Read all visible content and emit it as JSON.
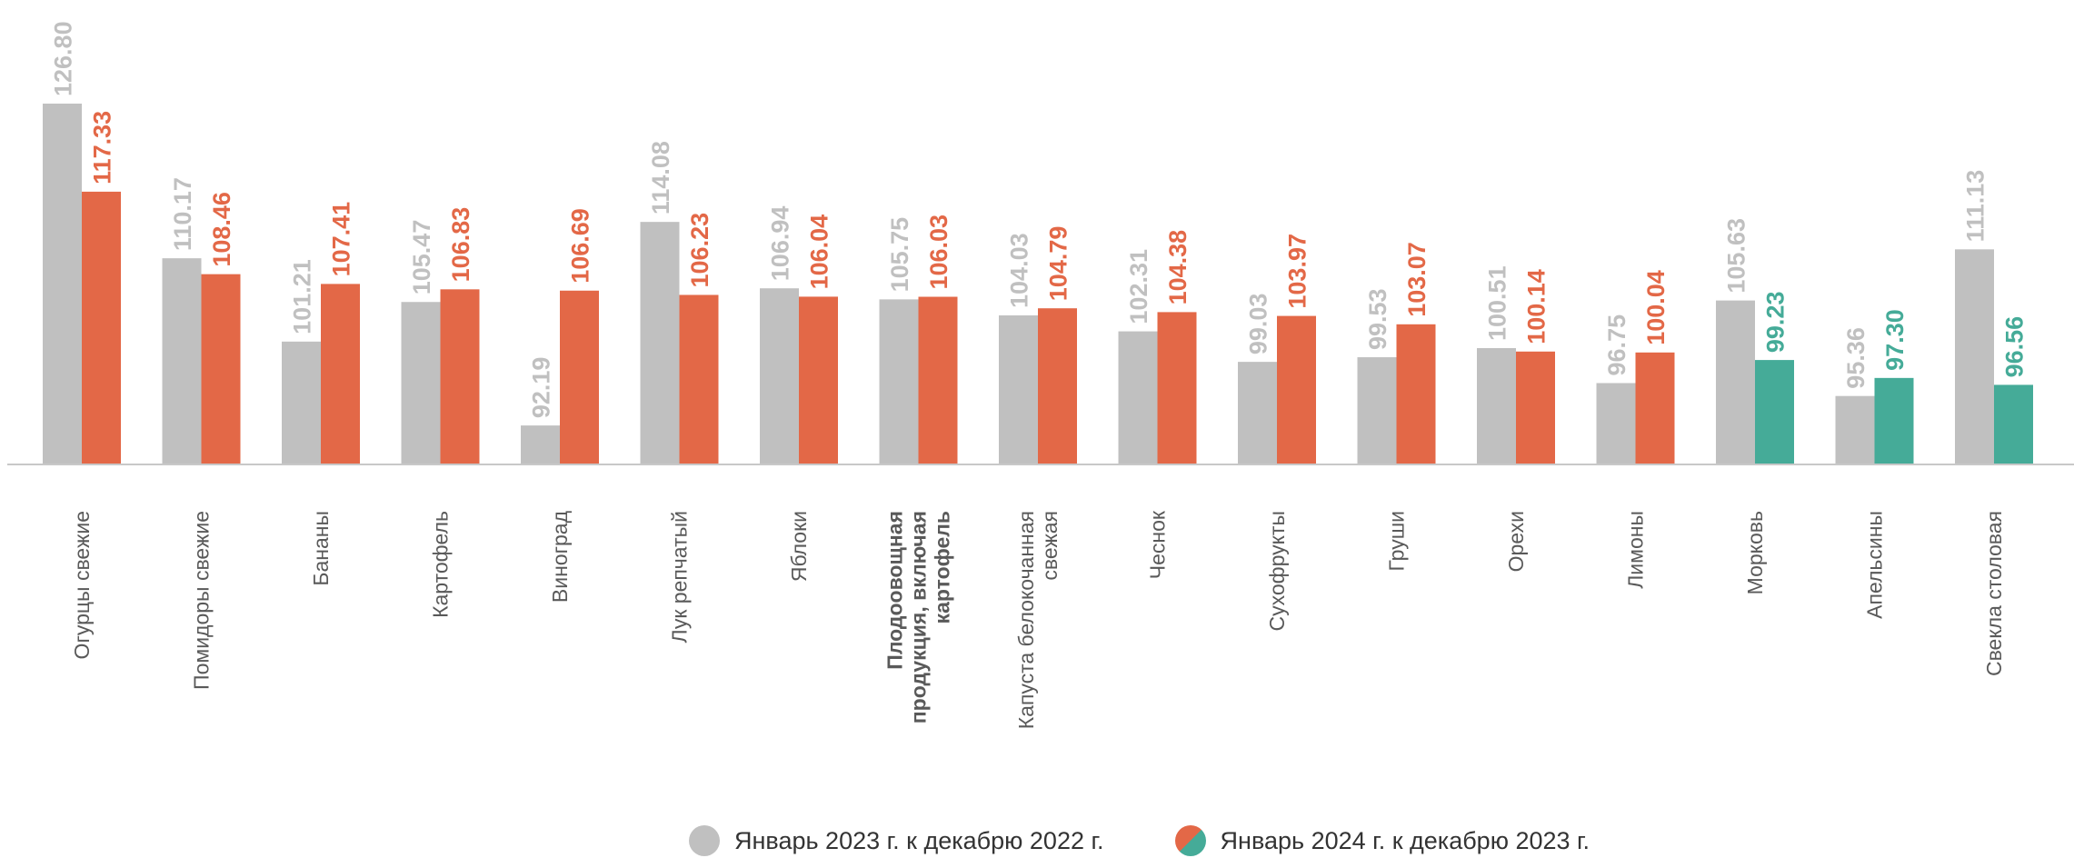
{
  "colors": {
    "series_2023": "#c0c0c0",
    "series_2024_up": "#e36847",
    "series_2024_down": "#45ab98",
    "axis": "#c8c8c8",
    "category_text": "#595959"
  },
  "legend": {
    "series_2023": "Январь 2023 г. к  декабрю 2022 г.",
    "series_2024": "Январь 2024 г. к декабрю 2023 г."
  },
  "chart_data": {
    "type": "bar",
    "categories": [
      "Огурцы свежие",
      "Помидоры свежие",
      "Бананы",
      "Картофель",
      "Виноград",
      "Лук репчатый",
      "Яблоки",
      "Плодоовощная продукция, включая картофель",
      "Капуста белокочанная свежая",
      "Чеснок",
      "Сухофрукты",
      "Груши",
      "Орехи",
      "Лимоны",
      "Морковь",
      "Апельсины",
      "Свекла столовая"
    ],
    "category_lines": [
      [
        "Огурцы свежие"
      ],
      [
        "Помидоры свежие"
      ],
      [
        "Бананы"
      ],
      [
        "Картофель"
      ],
      [
        "Виноград"
      ],
      [
        "Лук репчатый"
      ],
      [
        "Яблоки"
      ],
      [
        "Плодоовощная",
        "продукция, включая",
        "картофель"
      ],
      [
        "Капуста белокочанная",
        "свежая"
      ],
      [
        "Чеснок"
      ],
      [
        "Сухофрукты"
      ],
      [
        "Груши"
      ],
      [
        "Орехи"
      ],
      [
        "Лимоны"
      ],
      [
        "Морковь"
      ],
      [
        "Апельсины"
      ],
      [
        "Свекла столовая"
      ]
    ],
    "bold_category": "Плодоовощная продукция, включая картофель",
    "series": [
      {
        "name": "Январь 2023 г. к  декабрю 2022 г.",
        "values": [
          126.8,
          110.17,
          101.21,
          105.47,
          92.19,
          114.08,
          106.94,
          105.75,
          104.03,
          102.31,
          99.03,
          99.53,
          100.51,
          96.75,
          105.63,
          95.36,
          111.13
        ],
        "labels": [
          "126.80",
          "110.17",
          "101.21",
          "105.47",
          "92.19",
          "114.08",
          "106.94",
          "105.75",
          "104.03",
          "102.31",
          "99.03",
          "99.53",
          "100.51",
          "96.75",
          "105.63",
          "95.36",
          "111.13"
        ]
      },
      {
        "name": "Январь 2024 г. к декабрю 2023 г.",
        "values": [
          117.33,
          108.46,
          107.41,
          106.83,
          106.69,
          106.23,
          106.04,
          106.03,
          104.79,
          104.38,
          103.97,
          103.07,
          100.14,
          100.04,
          99.23,
          97.3,
          96.56
        ],
        "labels": [
          "117.33",
          "108.46",
          "107.41",
          "106.83",
          "106.69",
          "106.23",
          "106.04",
          "106.03",
          "104.79",
          "104.38",
          "103.97",
          "103.07",
          "100.14",
          "100.04",
          "99.23",
          "97.30",
          "96.56"
        ]
      }
    ],
    "ylim": [
      88,
      126.8
    ],
    "legend_position": "bottom",
    "grid": false
  }
}
